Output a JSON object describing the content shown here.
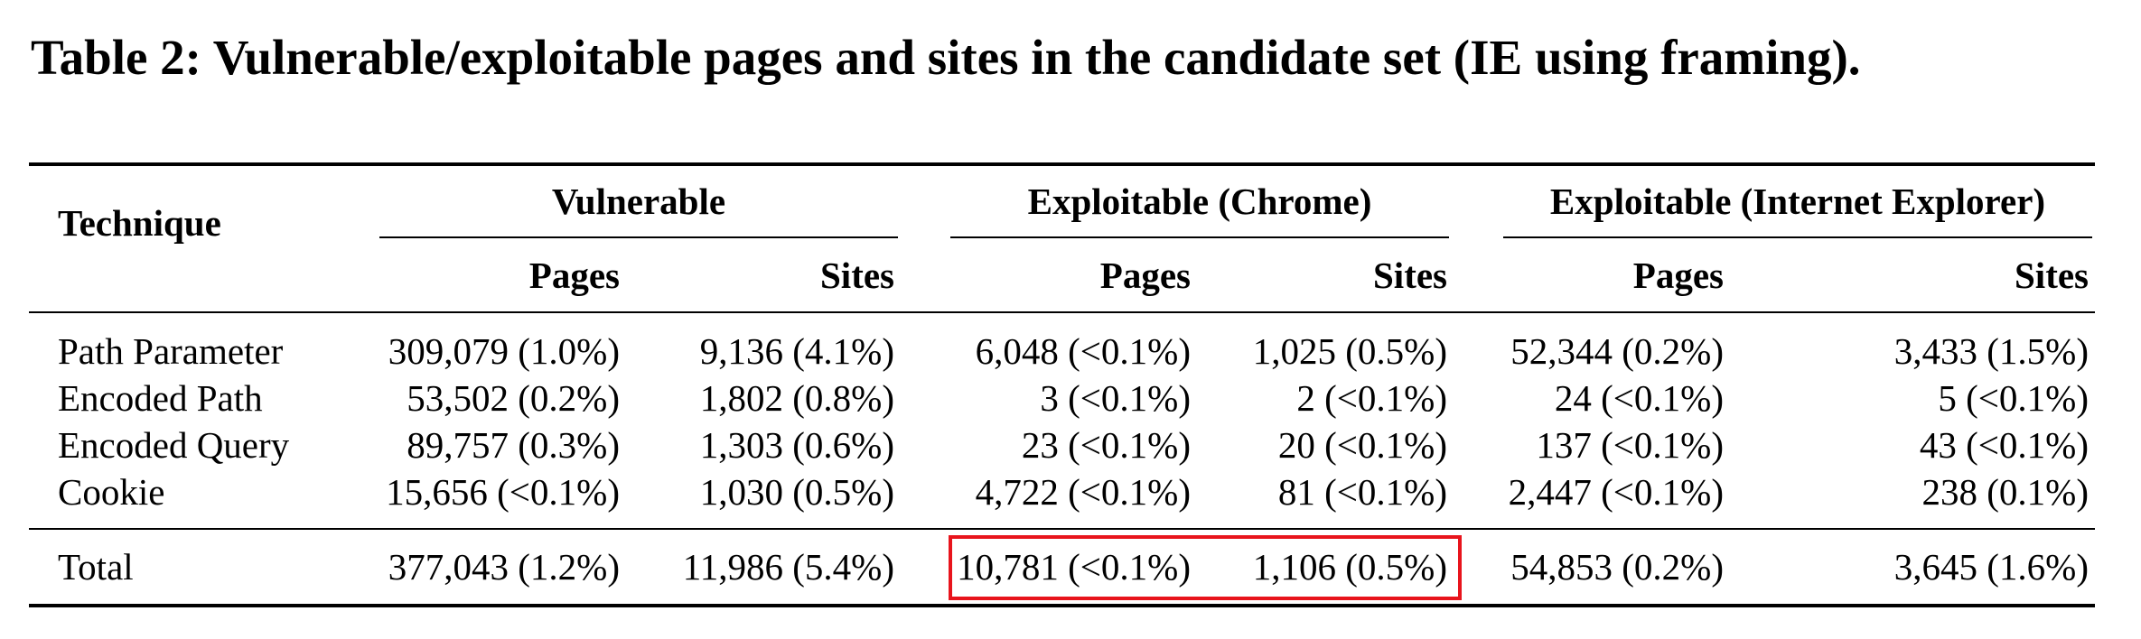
{
  "caption": "Table 2: Vulnerable/exploitable pages and sites in the candidate set (IE using framing).",
  "header": {
    "technique": "Technique",
    "groups": [
      "Vulnerable",
      "Exploitable (Chrome)",
      "Exploitable (Internet Explorer)"
    ],
    "subcolumns": [
      "Pages",
      "Sites",
      "Pages",
      "Sites",
      "Pages",
      "Sites"
    ]
  },
  "rows": [
    {
      "technique": "Path Parameter",
      "values": [
        "309,079 (1.0%)",
        "9,136 (4.1%)",
        "6,048 (<0.1%)",
        "1,025 (0.5%)",
        "52,344 (0.2%)",
        "3,433 (1.5%)"
      ]
    },
    {
      "technique": "Encoded Path",
      "values": [
        "53,502 (0.2%)",
        "1,802 (0.8%)",
        "3 (<0.1%)",
        "2 (<0.1%)",
        "24 (<0.1%)",
        "5 (<0.1%)"
      ]
    },
    {
      "technique": "Encoded Query",
      "values": [
        "89,757 (0.3%)",
        "1,303 (0.6%)",
        "23 (<0.1%)",
        "20 (<0.1%)",
        "137 (<0.1%)",
        "43 (<0.1%)"
      ]
    },
    {
      "technique": "Cookie",
      "values": [
        "15,656 (<0.1%)",
        "1,030 (0.5%)",
        "4,722 (<0.1%)",
        "81 (<0.1%)",
        "2,447 (<0.1%)",
        "238 (0.1%)"
      ]
    }
  ],
  "total": {
    "technique": "Total",
    "values": [
      "377,043 (1.2%)",
      "11,986 (5.4%)",
      "10,781 (<0.1%)",
      "1,106 (0.5%)",
      "54,853 (0.2%)",
      "3,645 (1.6%)"
    ]
  },
  "highlight_color": "#e8141c"
}
